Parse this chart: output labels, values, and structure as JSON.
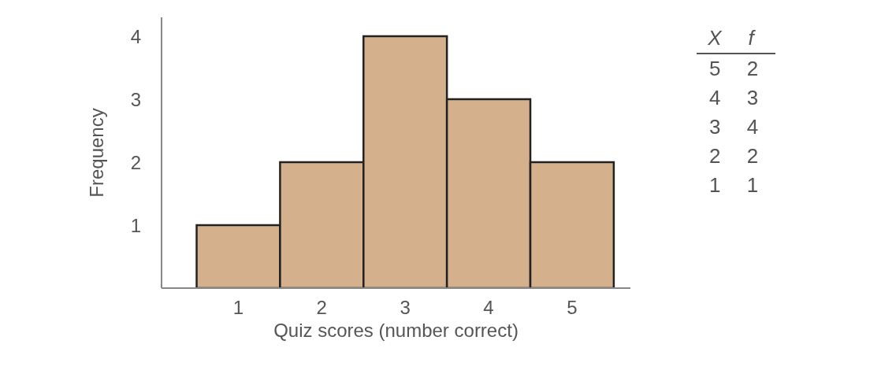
{
  "chart_data": [
    {
      "type": "histogram",
      "xlabel": "Quiz scores (number correct)",
      "ylabel": "Frequency",
      "bins": [
        0.5,
        1.5,
        2.5,
        3.5,
        4.5,
        5.5
      ],
      "values": [
        1,
        2,
        4,
        3,
        2
      ],
      "color": "#d4b08c",
      "xlim": [
        0.08,
        5.7
      ],
      "xticks": [
        1,
        2,
        3,
        4,
        5
      ],
      "ylim": [
        0,
        4.3
      ],
      "yticks": [
        1,
        2,
        3,
        4
      ]
    },
    {
      "type": "other",
      "annotations": [
        "X",
        "f",
        "5 2",
        "4 3",
        "3 4",
        "2 2",
        "1 1"
      ]
    }
  ]
}
